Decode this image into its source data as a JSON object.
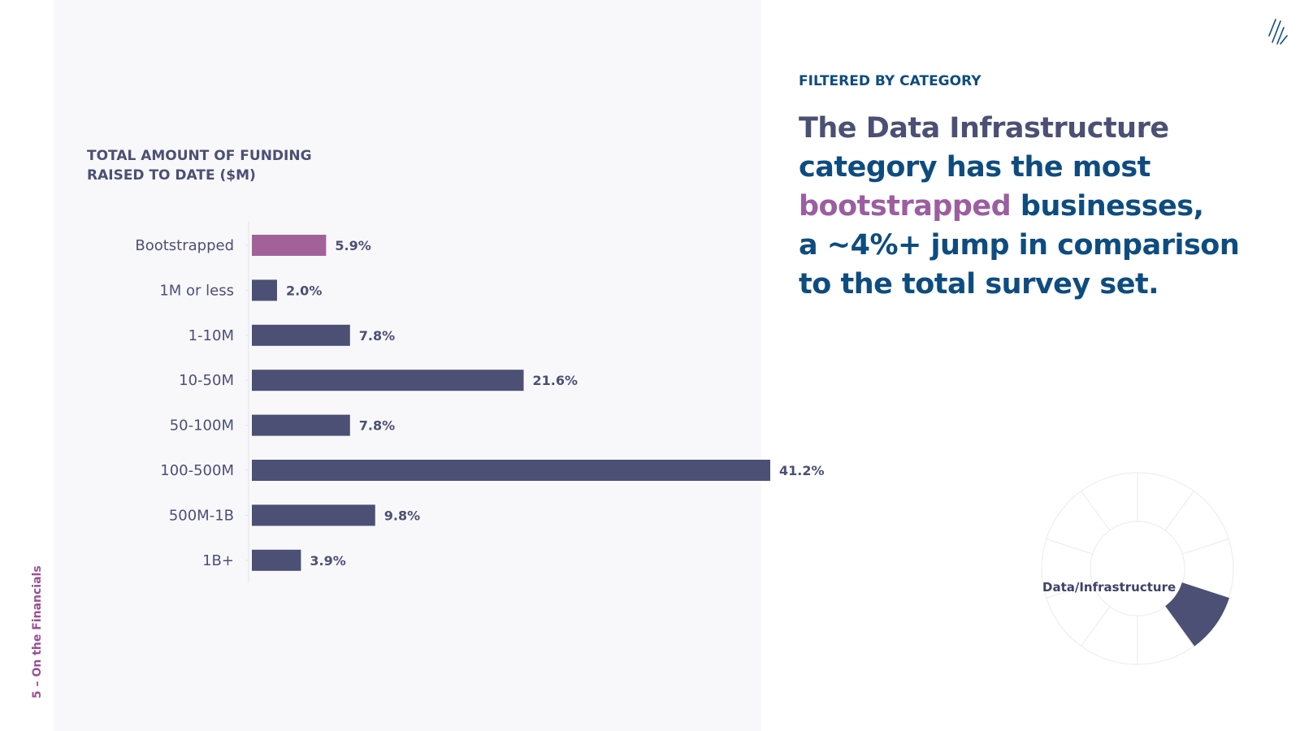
{
  "page": {
    "section_label": "5 – On the Financials",
    "kicker": "FILTERED BY CATEGORY",
    "headline": {
      "line1": "The Data Infrastructure",
      "line2": "category has the most",
      "line3_highlight": "bootstrapped",
      "line3_rest": " businesses,",
      "line4": "a ~4%+ jump in comparison",
      "line5": "to the total survey set."
    },
    "donut_label": "Data/Infrastructure"
  },
  "colors": {
    "panel_bg": "#f8f8fb",
    "bar": "#4b5074",
    "bar_highlight": "#a3619a",
    "heading_blue": "#0e4c80",
    "heading_gray": "#4b5074",
    "highlight_pink": "#9b5ea0",
    "section_label": "#9b4f93"
  },
  "chart_data": [
    {
      "type": "bar",
      "orientation": "horizontal",
      "title_lines": [
        "TOTAL AMOUNT OF FUNDING",
        "RAISED TO DATE ($M)"
      ],
      "categories": [
        "Bootstrapped",
        "1M or less",
        "1-10M",
        "10-50M",
        "50-100M",
        "100-500M",
        "500M-1B",
        "1B+"
      ],
      "values": [
        5.9,
        2.0,
        7.8,
        21.6,
        7.8,
        41.2,
        9.8,
        3.9
      ],
      "value_labels": [
        "5.9%",
        "2.0%",
        "7.8%",
        "21.6%",
        "7.8%",
        "41.2%",
        "9.8%",
        "3.9%"
      ],
      "unit": "%",
      "highlight_category": "Bootstrapped",
      "xlim": [
        0,
        41.2
      ],
      "grid": false,
      "legend": "none"
    },
    {
      "type": "pie",
      "style": "donut",
      "segments": 10,
      "highlighted_segment": "Data/Infrastructure",
      "highlighted_index": 3,
      "legend": "none"
    }
  ]
}
